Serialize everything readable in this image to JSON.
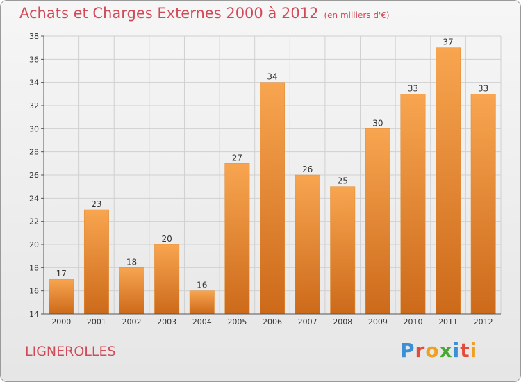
{
  "header": {
    "title": "Achats et Charges Externes 2000 à 2012",
    "unit": "(en milliers d'€)"
  },
  "footer": {
    "commune": "LIGNEROLLES",
    "logo": {
      "text": "Proxiti",
      "letter_colors": [
        "#3a8fd6",
        "#e64a3a",
        "#f0a020",
        "#44aa33",
        "#3a8fd6",
        "#e64a3a",
        "#f0a020"
      ]
    }
  },
  "colors": {
    "title": "#d24a58",
    "bar_top": "#f8a550",
    "bar_bottom": "#cc6a1a",
    "grid": "#d0d0d0",
    "axis_text": "#333333"
  },
  "chart_data": {
    "type": "bar",
    "title": "Achats et Charges Externes 2000 à 2012",
    "subtitle": "(en milliers d'€)",
    "xlabel": "",
    "ylabel": "",
    "categories": [
      "2000",
      "2001",
      "2002",
      "2003",
      "2004",
      "2005",
      "2006",
      "2007",
      "2008",
      "2009",
      "2010",
      "2011",
      "2012"
    ],
    "values": [
      17,
      23,
      18,
      20,
      16,
      27,
      34,
      26,
      25,
      30,
      33,
      37,
      33
    ],
    "ylim": [
      14,
      38
    ],
    "yticks": [
      14,
      16,
      18,
      20,
      22,
      24,
      26,
      28,
      30,
      32,
      34,
      36,
      38
    ],
    "grid": true,
    "legend": "none",
    "data_labels": true
  }
}
